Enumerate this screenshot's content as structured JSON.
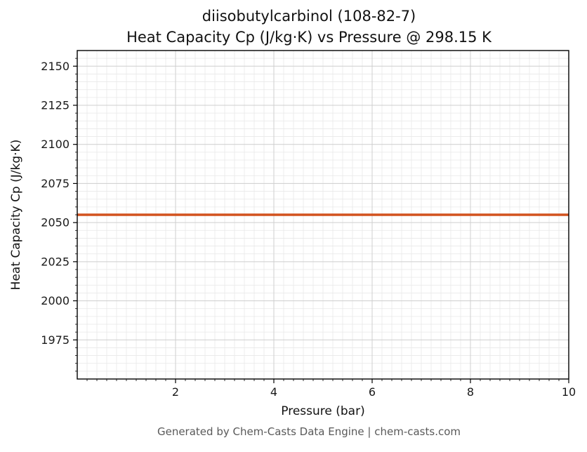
{
  "title": {
    "line1": "diisobutylcarbinol (108-82-7)",
    "line2": "Heat Capacity Cp (J/kg·K) vs Pressure @ 298.15 K"
  },
  "footer": {
    "text": "Generated by Chem-Casts Data Engine | chem-casts.com"
  },
  "chart_data": {
    "type": "line",
    "title": "diisobutylcarbinol (108-82-7)\nHeat Capacity Cp (J/kg·K) vs Pressure @ 298.15 K",
    "xlabel": "Pressure (bar)",
    "ylabel": "Heat Capacity Cp (J/kg·K)",
    "xlim": [
      0,
      10
    ],
    "ylim": [
      1950,
      2160
    ],
    "x_ticks": [
      2,
      4,
      6,
      8,
      10
    ],
    "y_ticks": [
      1975,
      2000,
      2025,
      2050,
      2075,
      2100,
      2125,
      2150
    ],
    "x_minor_step": 0.2,
    "y_minor_step": 5,
    "grid": true,
    "legend": "none",
    "series": [
      {
        "name": "Heat Capacity Cp",
        "color": "#d2521e",
        "x": [
          0,
          10
        ],
        "y": [
          2055,
          2055
        ]
      }
    ],
    "constant_value": 2055,
    "condition_temperature_K": 298.15
  },
  "colors": {
    "line": "#d2521e",
    "grid_minor": "#e8e8e8",
    "grid_major": "#cfcfcf",
    "spine": "#000000",
    "tick_label": "#1a1a1a",
    "footer_text": "#595959",
    "background": "#ffffff"
  }
}
